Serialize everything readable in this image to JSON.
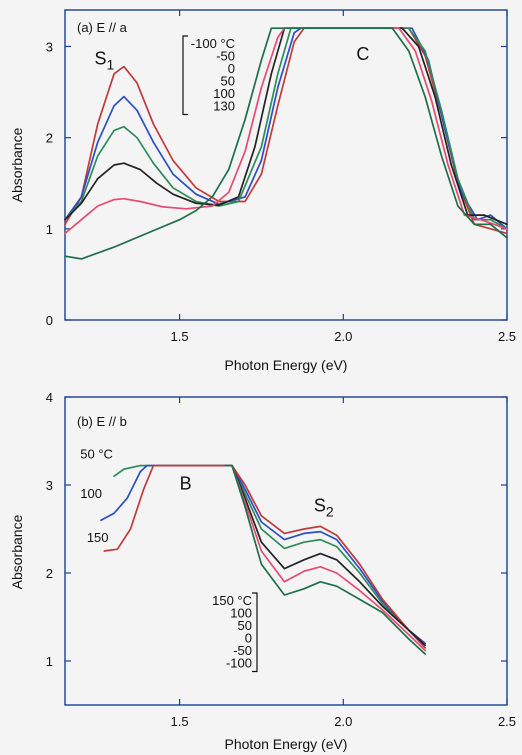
{
  "chart_data": [
    {
      "type": "line",
      "panel_label": "(a) E // a",
      "xlabel": "Photon Energy  (eV)",
      "ylabel": "Absorbance",
      "xlim": [
        1.15,
        2.5
      ],
      "ylim": [
        0,
        3.4
      ],
      "xticks": [
        1.5,
        2.0,
        2.5
      ],
      "yticks": [
        0,
        1,
        2,
        3
      ],
      "annotations": [
        {
          "text": "S",
          "sub": "1",
          "x": 1.24,
          "y": 2.8
        },
        {
          "text": "C",
          "x": 2.04,
          "y": 2.85
        }
      ],
      "legend": {
        "labels": [
          "-100 °C",
          "-50",
          "0",
          "50",
          "100",
          "130"
        ],
        "placement": "top-center"
      },
      "series": [
        {
          "name": "-100",
          "color": "#c23a3a",
          "points": [
            [
              1.15,
              1.05
            ],
            [
              1.2,
              1.35
            ],
            [
              1.25,
              2.15
            ],
            [
              1.3,
              2.7
            ],
            [
              1.33,
              2.78
            ],
            [
              1.37,
              2.6
            ],
            [
              1.42,
              2.15
            ],
            [
              1.48,
              1.75
            ],
            [
              1.55,
              1.45
            ],
            [
              1.62,
              1.3
            ],
            [
              1.7,
              1.3
            ],
            [
              1.75,
              1.6
            ],
            [
              1.8,
              2.35
            ],
            [
              1.85,
              3.05
            ],
            [
              1.88,
              3.2
            ],
            [
              2.2,
              3.2
            ],
            [
              2.25,
              2.9
            ],
            [
              2.3,
              2.25
            ],
            [
              2.35,
              1.5
            ],
            [
              2.4,
              1.05
            ],
            [
              2.45,
              1.0
            ],
            [
              2.5,
              0.95
            ]
          ]
        },
        {
          "name": "-50",
          "color": "#2a4fc8",
          "points": [
            [
              1.15,
              1.1
            ],
            [
              1.2,
              1.35
            ],
            [
              1.25,
              1.95
            ],
            [
              1.3,
              2.35
            ],
            [
              1.33,
              2.45
            ],
            [
              1.37,
              2.3
            ],
            [
              1.42,
              1.95
            ],
            [
              1.48,
              1.6
            ],
            [
              1.55,
              1.38
            ],
            [
              1.62,
              1.27
            ],
            [
              1.7,
              1.35
            ],
            [
              1.75,
              1.75
            ],
            [
              1.8,
              2.55
            ],
            [
              1.85,
              3.15
            ],
            [
              1.87,
              3.2
            ],
            [
              2.21,
              3.2
            ],
            [
              2.26,
              2.85
            ],
            [
              2.31,
              2.1
            ],
            [
              2.36,
              1.4
            ],
            [
              2.41,
              1.1
            ],
            [
              2.45,
              1.15
            ],
            [
              2.5,
              1.0
            ]
          ]
        },
        {
          "name": "0",
          "color": "#2f8a5a",
          "points": [
            [
              1.15,
              1.1
            ],
            [
              1.2,
              1.3
            ],
            [
              1.25,
              1.8
            ],
            [
              1.3,
              2.08
            ],
            [
              1.33,
              2.12
            ],
            [
              1.37,
              2.0
            ],
            [
              1.42,
              1.72
            ],
            [
              1.48,
              1.45
            ],
            [
              1.55,
              1.3
            ],
            [
              1.62,
              1.25
            ],
            [
              1.68,
              1.3
            ],
            [
              1.75,
              1.9
            ],
            [
              1.8,
              2.7
            ],
            [
              1.84,
              3.2
            ],
            [
              2.2,
              3.2
            ],
            [
              2.25,
              2.95
            ],
            [
              2.3,
              2.3
            ],
            [
              2.35,
              1.55
            ],
            [
              2.4,
              1.1
            ],
            [
              2.45,
              1.1
            ],
            [
              2.5,
              1.0
            ]
          ]
        },
        {
          "name": "50",
          "color": "#222222",
          "points": [
            [
              1.15,
              1.1
            ],
            [
              1.2,
              1.28
            ],
            [
              1.25,
              1.55
            ],
            [
              1.3,
              1.7
            ],
            [
              1.33,
              1.72
            ],
            [
              1.38,
              1.65
            ],
            [
              1.43,
              1.5
            ],
            [
              1.48,
              1.38
            ],
            [
              1.55,
              1.28
            ],
            [
              1.62,
              1.26
            ],
            [
              1.68,
              1.35
            ],
            [
              1.73,
              1.9
            ],
            [
              1.78,
              2.7
            ],
            [
              1.82,
              3.2
            ],
            [
              2.18,
              3.2
            ],
            [
              2.23,
              3.0
            ],
            [
              2.28,
              2.45
            ],
            [
              2.33,
              1.7
            ],
            [
              2.38,
              1.15
            ],
            [
              2.43,
              1.15
            ],
            [
              2.5,
              1.05
            ]
          ]
        },
        {
          "name": "100",
          "color": "#e84a72",
          "points": [
            [
              1.15,
              0.95
            ],
            [
              1.2,
              1.1
            ],
            [
              1.25,
              1.25
            ],
            [
              1.3,
              1.32
            ],
            [
              1.33,
              1.33
            ],
            [
              1.38,
              1.3
            ],
            [
              1.45,
              1.24
            ],
            [
              1.52,
              1.22
            ],
            [
              1.6,
              1.25
            ],
            [
              1.65,
              1.4
            ],
            [
              1.7,
              1.85
            ],
            [
              1.75,
              2.55
            ],
            [
              1.8,
              3.1
            ],
            [
              1.82,
              3.2
            ],
            [
              2.17,
              3.2
            ],
            [
              2.22,
              2.95
            ],
            [
              2.27,
              2.4
            ],
            [
              2.32,
              1.7
            ],
            [
              2.37,
              1.15
            ],
            [
              2.42,
              1.1
            ],
            [
              2.5,
              1.0
            ]
          ]
        },
        {
          "name": "130",
          "color": "#1f6e4a",
          "points": [
            [
              1.15,
              0.7
            ],
            [
              1.2,
              0.67
            ],
            [
              1.3,
              0.8
            ],
            [
              1.4,
              0.95
            ],
            [
              1.5,
              1.1
            ],
            [
              1.55,
              1.2
            ],
            [
              1.6,
              1.35
            ],
            [
              1.65,
              1.65
            ],
            [
              1.7,
              2.2
            ],
            [
              1.75,
              2.85
            ],
            [
              1.78,
              3.2
            ],
            [
              2.15,
              3.2
            ],
            [
              2.2,
              2.95
            ],
            [
              2.25,
              2.45
            ],
            [
              2.3,
              1.8
            ],
            [
              2.35,
              1.25
            ],
            [
              2.4,
              1.05
            ],
            [
              2.45,
              1.05
            ],
            [
              2.5,
              0.9
            ]
          ]
        }
      ]
    },
    {
      "type": "line",
      "panel_label": "(b) E // b",
      "xlabel": "Photon Energy  (eV)",
      "ylabel": "Absorbance",
      "xlim": [
        1.15,
        2.5
      ],
      "ylim": [
        0.5,
        4
      ],
      "xticks": [
        1.5,
        2.0,
        2.5
      ],
      "yticks": [
        1,
        2,
        3,
        4
      ],
      "annotations": [
        {
          "text": "B",
          "x": 1.5,
          "y": 2.95
        },
        {
          "text": "S",
          "sub": "2",
          "x": 1.91,
          "y": 2.7
        }
      ],
      "curve_labels": [
        {
          "text": "50 °C",
          "x": 1.16,
          "y": 3.3
        },
        {
          "text": "100",
          "x": 1.16,
          "y": 2.85
        },
        {
          "text": "150",
          "x": 1.18,
          "y": 2.35
        }
      ],
      "legend": {
        "labels": [
          "150 °C",
          "100",
          "50",
          "0",
          "-50",
          "-100"
        ],
        "placement": "bottom-center"
      },
      "series": [
        {
          "name": "50",
          "color": "#2f8a5a",
          "points": [
            [
              1.3,
              3.1
            ],
            [
              1.33,
              3.18
            ],
            [
              1.38,
              3.22
            ],
            [
              1.66,
              3.22
            ],
            [
              1.7,
              2.9
            ],
            [
              1.75,
              2.5
            ],
            [
              1.82,
              2.28
            ],
            [
              1.88,
              2.35
            ],
            [
              1.93,
              2.38
            ],
            [
              1.98,
              2.3
            ],
            [
              2.05,
              2.0
            ],
            [
              2.12,
              1.65
            ],
            [
              2.2,
              1.35
            ],
            [
              2.25,
              1.2
            ]
          ]
        },
        {
          "name": "100",
          "color": "#2a4fc8",
          "points": [
            [
              1.26,
              2.6
            ],
            [
              1.3,
              2.68
            ],
            [
              1.34,
              2.85
            ],
            [
              1.38,
              3.15
            ],
            [
              1.4,
              3.22
            ],
            [
              1.66,
              3.22
            ],
            [
              1.7,
              2.95
            ],
            [
              1.75,
              2.58
            ],
            [
              1.82,
              2.38
            ],
            [
              1.88,
              2.45
            ],
            [
              1.93,
              2.47
            ],
            [
              1.98,
              2.38
            ],
            [
              2.05,
              2.05
            ],
            [
              2.12,
              1.68
            ],
            [
              2.2,
              1.35
            ],
            [
              2.25,
              1.2
            ]
          ]
        },
        {
          "name": "150",
          "color": "#c23a3a",
          "points": [
            [
              1.27,
              2.25
            ],
            [
              1.31,
              2.27
            ],
            [
              1.35,
              2.5
            ],
            [
              1.39,
              2.95
            ],
            [
              1.42,
              3.22
            ],
            [
              1.66,
              3.22
            ],
            [
              1.7,
              3.0
            ],
            [
              1.75,
              2.65
            ],
            [
              1.82,
              2.45
            ],
            [
              1.88,
              2.5
            ],
            [
              1.93,
              2.53
            ],
            [
              1.98,
              2.43
            ],
            [
              2.05,
              2.1
            ],
            [
              2.12,
              1.7
            ],
            [
              2.2,
              1.35
            ],
            [
              2.25,
              1.15
            ]
          ]
        },
        {
          "name": "0",
          "color": "#222222",
          "points": [
            [
              1.64,
              3.22
            ],
            [
              1.66,
              3.22
            ],
            [
              1.7,
              2.85
            ],
            [
              1.75,
              2.35
            ],
            [
              1.82,
              2.05
            ],
            [
              1.88,
              2.15
            ],
            [
              1.93,
              2.22
            ],
            [
              1.98,
              2.15
            ],
            [
              2.05,
              1.9
            ],
            [
              2.12,
              1.62
            ],
            [
              2.2,
              1.35
            ],
            [
              2.25,
              1.18
            ]
          ]
        },
        {
          "name": "-50",
          "color": "#e84a72",
          "points": [
            [
              1.64,
              3.22
            ],
            [
              1.66,
              3.22
            ],
            [
              1.7,
              2.8
            ],
            [
              1.75,
              2.25
            ],
            [
              1.82,
              1.9
            ],
            [
              1.88,
              2.02
            ],
            [
              1.93,
              2.07
            ],
            [
              1.98,
              2.0
            ],
            [
              2.05,
              1.8
            ],
            [
              2.12,
              1.58
            ],
            [
              2.2,
              1.3
            ],
            [
              2.25,
              1.12
            ]
          ]
        },
        {
          "name": "-100",
          "color": "#1f6e4a",
          "points": [
            [
              1.64,
              3.22
            ],
            [
              1.66,
              3.22
            ],
            [
              1.7,
              2.75
            ],
            [
              1.75,
              2.1
            ],
            [
              1.82,
              1.75
            ],
            [
              1.88,
              1.82
            ],
            [
              1.93,
              1.9
            ],
            [
              1.98,
              1.85
            ],
            [
              2.05,
              1.7
            ],
            [
              2.12,
              1.55
            ],
            [
              2.2,
              1.25
            ],
            [
              2.25,
              1.08
            ]
          ]
        }
      ]
    }
  ]
}
